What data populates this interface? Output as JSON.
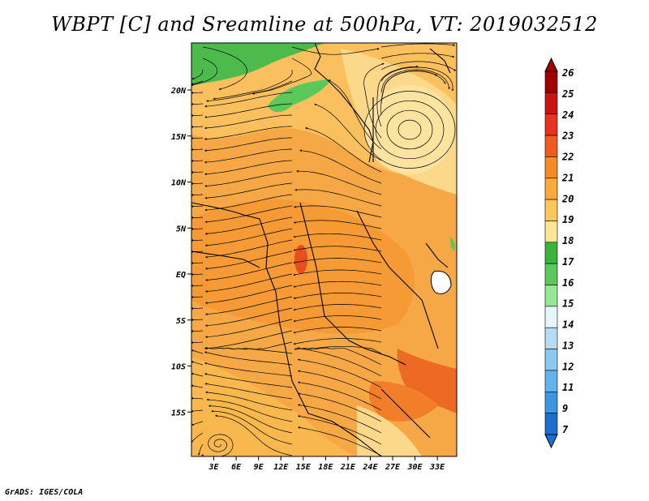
{
  "title": "WBPT [C] and Sreamline at 500hPa, VT: 2019032512",
  "footer": "GrADS: IGES/COLA",
  "map": {
    "lat_labels": [
      {
        "value": 20,
        "text": "20N"
      },
      {
        "value": 15,
        "text": "15N"
      },
      {
        "value": 10,
        "text": "10N"
      },
      {
        "value": 5,
        "text": "5N"
      },
      {
        "value": 0,
        "text": "EQ"
      },
      {
        "value": -5,
        "text": "5S"
      },
      {
        "value": -10,
        "text": "10S"
      },
      {
        "value": -15,
        "text": "15S"
      }
    ],
    "lon_labels": [
      {
        "value": 3,
        "text": "3E"
      },
      {
        "value": 6,
        "text": "6E"
      },
      {
        "value": 9,
        "text": "9E"
      },
      {
        "value": 12,
        "text": "12E"
      },
      {
        "value": 15,
        "text": "15E"
      },
      {
        "value": 18,
        "text": "18E"
      },
      {
        "value": 21,
        "text": "21E"
      },
      {
        "value": 24,
        "text": "24E"
      },
      {
        "value": 27,
        "text": "27E"
      },
      {
        "value": 30,
        "text": "30E"
      },
      {
        "value": 33,
        "text": "33E"
      }
    ]
  },
  "colorbar": {
    "labels": [
      "26",
      "25",
      "24",
      "23",
      "22",
      "21",
      "20",
      "19",
      "18",
      "17",
      "16",
      "15",
      "14",
      "13",
      "12",
      "11",
      "9",
      "7"
    ],
    "colors": [
      "#a00000",
      "#c81414",
      "#e6321e",
      "#f05a1e",
      "#f58c28",
      "#faaa3c",
      "#fcc85a",
      "#fde696",
      "#3cb43c",
      "#5ac85a",
      "#96e696",
      "#e6f5fa",
      "#b4dcf5",
      "#8cc8f0",
      "#64b4eb",
      "#3c96e1",
      "#1e6ed2"
    ]
  }
}
